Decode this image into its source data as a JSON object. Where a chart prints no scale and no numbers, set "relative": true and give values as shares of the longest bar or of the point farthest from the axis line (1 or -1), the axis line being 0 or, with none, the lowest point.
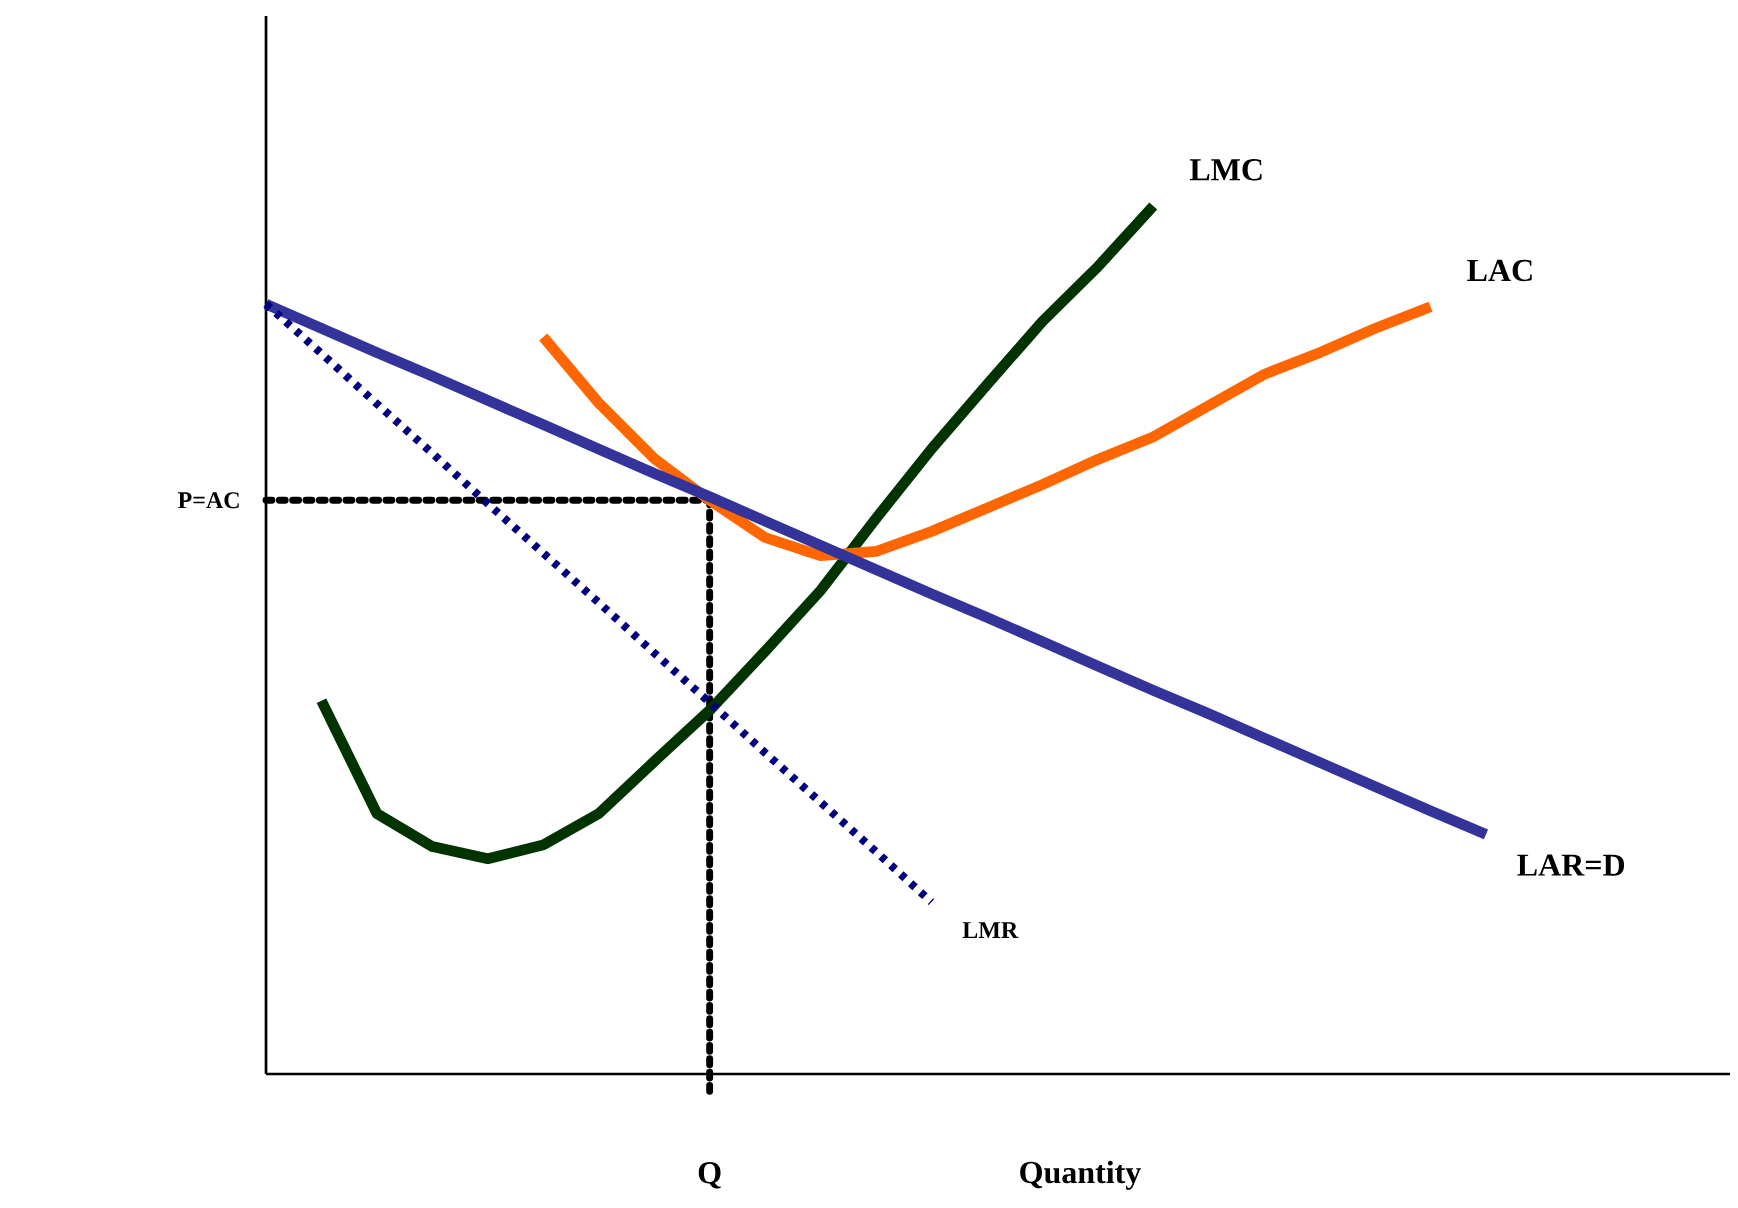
{
  "chart_data": {
    "type": "line",
    "relative": true,
    "xlabel": "Quantity",
    "annotations": [
      "Q"
    ],
    "categories": [
      null,
      null,
      null,
      null,
      null,
      null,
      null,
      null,
      null,
      null,
      null,
      null,
      null,
      null,
      null,
      null,
      null,
      null,
      null,
      null,
      null,
      null,
      null
    ],
    "series": [
      {
        "name": "LMC",
        "color": "#003300",
        "values": [
          null,
          0.43,
          0.3,
          0.262,
          0.248,
          0.264,
          0.3,
          0.36,
          0.419,
          0.487,
          0.557,
          0.64,
          0.72,
          0.794,
          0.867,
          0.93,
          1.0,
          null,
          null,
          null,
          null,
          null,
          null
        ]
      },
      {
        "name": "LAC",
        "color": "#ff6600",
        "values": [
          null,
          null,
          null,
          null,
          null,
          0.849,
          0.773,
          0.709,
          0.661,
          0.618,
          0.597,
          0.602,
          0.625,
          0.652,
          0.679,
          0.708,
          0.734,
          0.77,
          0.806,
          0.831,
          0.859,
          0.884,
          null
        ]
      },
      {
        "name": "LAR=D",
        "color": "#333399",
        "values": [
          0.887,
          0.859,
          0.831,
          0.804,
          0.776,
          0.748,
          0.72,
          0.692,
          0.665,
          0.637,
          0.609,
          0.581,
          0.553,
          0.526,
          0.498,
          0.47,
          0.442,
          0.415,
          0.387,
          0.359,
          0.331,
          0.303,
          0.276
        ]
      },
      {
        "name": "LMR",
        "color": "#000080",
        "line_style": "dotted",
        "values": [
          0.887,
          0.83,
          0.772,
          0.715,
          0.657,
          0.6,
          0.543,
          0.485,
          0.428,
          0.37,
          0.313,
          0.256,
          0.198,
          null,
          null,
          null,
          null,
          null,
          null,
          null,
          null,
          null,
          null
        ]
      }
    ],
    "ref_lines": [
      {
        "axis": "y",
        "value": 0.661,
        "label": "P=AC",
        "color": "#000000",
        "line_style": "dotted"
      }
    ]
  }
}
